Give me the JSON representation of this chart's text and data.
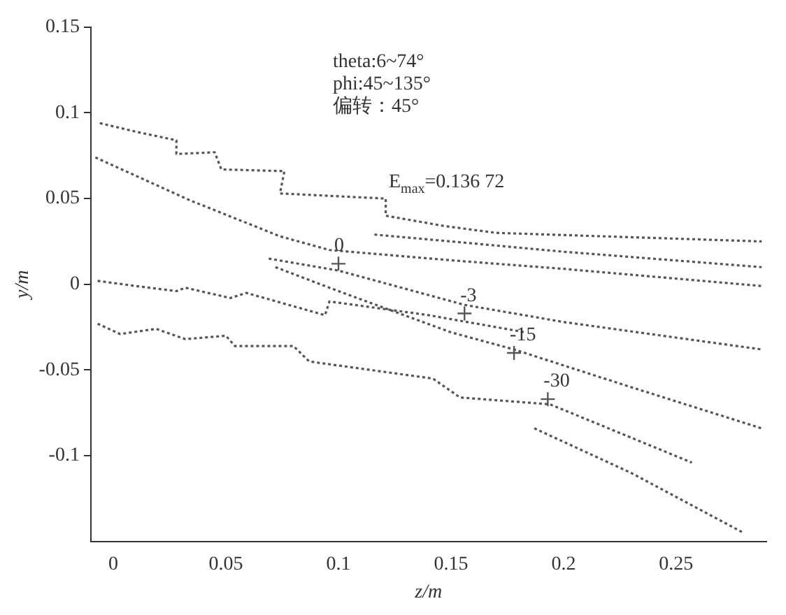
{
  "chart_data": {
    "type": "line",
    "xlabel": "z/m",
    "ylabel": "y/m",
    "xlim": [
      -0.01,
      0.29
    ],
    "ylim": [
      -0.15,
      0.15
    ],
    "xticks": [
      0,
      0.05,
      0.1,
      0.15,
      0.2,
      0.25
    ],
    "yticks": [
      0.15,
      0.1,
      0.05,
      0,
      -0.05,
      -0.1
    ],
    "grid": false,
    "legend": false,
    "line_style": "dotted",
    "marker": "none",
    "annotations": [
      "theta:6~74°",
      "phi:45~135°",
      "偏转：45°",
      "E$_{max}$=0.136 72",
      {
        "text": "0",
        "x": 0.1,
        "y": 0.012
      },
      {
        "text": "-3",
        "x": 0.156,
        "y": -0.017
      },
      {
        "text": "-15",
        "x": 0.178,
        "y": -0.04
      },
      {
        "text": "-30",
        "x": 0.193,
        "y": -0.067
      }
    ],
    "series": [
      {
        "color": "#555555",
        "x": [
          -0.006,
          0.01,
          0.028,
          0.028,
          0.045,
          0.048,
          0.076,
          0.074,
          0.121,
          0.121,
          0.147,
          0.17,
          0.288
        ],
        "values": [
          0.094,
          0.089,
          0.084,
          0.076,
          0.077,
          0.067,
          0.066,
          0.053,
          0.05,
          0.04,
          0.034,
          0.03,
          0.025
        ]
      },
      {
        "color": "#555555",
        "x": [
          0.116,
          0.15,
          0.2,
          0.288
        ],
        "values": [
          0.029,
          0.025,
          0.019,
          0.01
        ]
      },
      {
        "color": "#555555",
        "x": [
          -0.008,
          0.034,
          0.074,
          0.096,
          0.15,
          0.2,
          0.288
        ],
        "values": [
          0.074,
          0.049,
          0.028,
          0.02,
          0.014,
          0.009,
          -0.001
        ]
      },
      {
        "color": "#555555",
        "x": [
          0.069,
          0.1,
          0.156,
          0.2,
          0.288
        ],
        "values": [
          0.015,
          0.008,
          -0.012,
          -0.022,
          -0.038
        ]
      },
      {
        "color": "#555555",
        "x": [
          0.072,
          0.1,
          0.15,
          0.178,
          0.23,
          0.288
        ],
        "values": [
          0.01,
          -0.004,
          -0.028,
          -0.038,
          -0.06,
          -0.084
        ]
      },
      {
        "color": "#555555",
        "x": [
          -0.007,
          0.01,
          0.028,
          0.032,
          0.052,
          0.059,
          0.094,
          0.096,
          0.14,
          0.183
        ],
        "values": [
          0.002,
          -0.001,
          -0.004,
          -0.002,
          -0.008,
          -0.005,
          -0.018,
          -0.01,
          -0.018,
          -0.028
        ]
      },
      {
        "color": "#555555",
        "x": [
          -0.007,
          0.003,
          0.019,
          0.032,
          0.05,
          0.054,
          0.08,
          0.087,
          0.142,
          0.154,
          0.194,
          0.257
        ],
        "values": [
          -0.023,
          -0.029,
          -0.026,
          -0.032,
          -0.03,
          -0.036,
          -0.036,
          -0.045,
          -0.055,
          -0.066,
          -0.07,
          -0.104
        ]
      },
      {
        "color": "#555555",
        "x": [
          0.187,
          0.23,
          0.28
        ],
        "values": [
          -0.084,
          -0.11,
          -0.145
        ]
      },
      {
        "type": "scatter",
        "marker": "cross",
        "color": "#555555",
        "x": [
          0.1,
          0.156,
          0.178,
          0.193
        ],
        "values": [
          0.012,
          -0.017,
          -0.04,
          -0.067
        ]
      }
    ]
  }
}
